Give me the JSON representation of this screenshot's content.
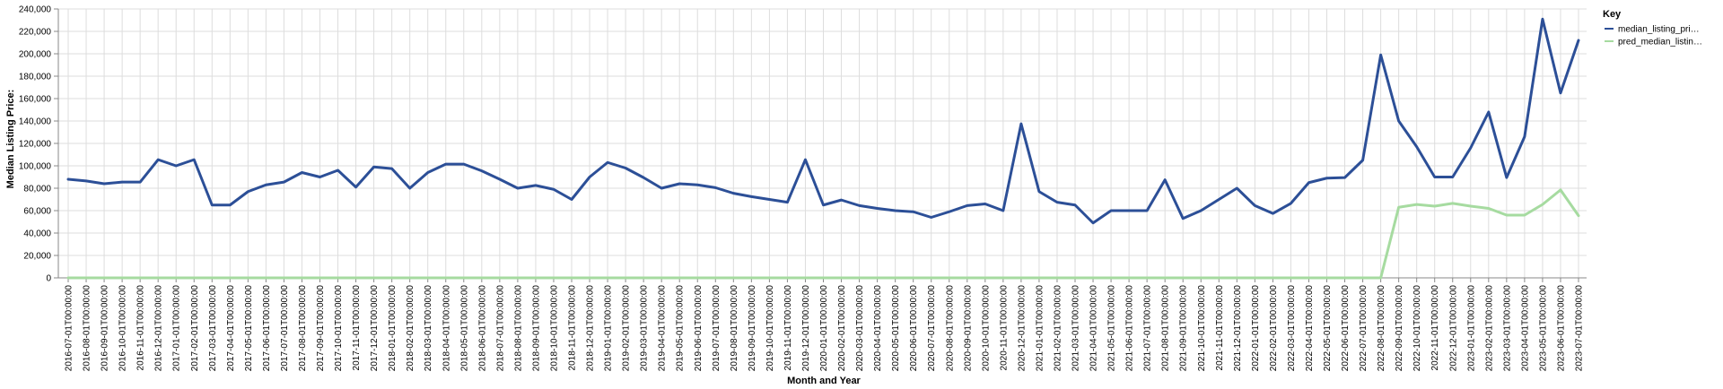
{
  "chart_data": {
    "type": "line",
    "xlabel": "Month and Year",
    "ylabel": "Median Listing Price:",
    "ylim": [
      0,
      240000
    ],
    "yticks": [
      "0",
      "20,000",
      "40,000",
      "60,000",
      "80,000",
      "100,000",
      "120,000",
      "140,000",
      "160,000",
      "180,000",
      "200,000",
      "220,000",
      "240,000"
    ],
    "grid": true,
    "legend": {
      "title": "Key",
      "position": "right",
      "entries": [
        "median_listing_pri…",
        "pred_median_listin…"
      ]
    },
    "categories": [
      "2016-07-01T00:00:00",
      "2016-08-01T00:00:00",
      "2016-09-01T00:00:00",
      "2016-10-01T00:00:00",
      "2016-11-01T00:00:00",
      "2016-12-01T00:00:00",
      "2017-01-01T00:00:00",
      "2017-02-01T00:00:00",
      "2017-03-01T00:00:00",
      "2017-04-01T00:00:00",
      "2017-05-01T00:00:00",
      "2017-06-01T00:00:00",
      "2017-07-01T00:00:00",
      "2017-08-01T00:00:00",
      "2017-09-01T00:00:00",
      "2017-10-01T00:00:00",
      "2017-11-01T00:00:00",
      "2017-12-01T00:00:00",
      "2018-01-01T00:00:00",
      "2018-02-01T00:00:00",
      "2018-03-01T00:00:00",
      "2018-04-01T00:00:00",
      "2018-05-01T00:00:00",
      "2018-06-01T00:00:00",
      "2018-07-01T00:00:00",
      "2018-08-01T00:00:00",
      "2018-09-01T00:00:00",
      "2018-10-01T00:00:00",
      "2018-11-01T00:00:00",
      "2018-12-01T00:00:00",
      "2019-01-01T00:00:00",
      "2019-02-01T00:00:00",
      "2019-03-01T00:00:00",
      "2019-04-01T00:00:00",
      "2019-05-01T00:00:00",
      "2019-06-01T00:00:00",
      "2019-07-01T00:00:00",
      "2019-08-01T00:00:00",
      "2019-09-01T00:00:00",
      "2019-10-01T00:00:00",
      "2019-11-01T00:00:00",
      "2019-12-01T00:00:00",
      "2020-01-01T00:00:00",
      "2020-02-01T00:00:00",
      "2020-03-01T00:00:00",
      "2020-04-01T00:00:00",
      "2020-05-01T00:00:00",
      "2020-06-01T00:00:00",
      "2020-07-01T00:00:00",
      "2020-08-01T00:00:00",
      "2020-09-01T00:00:00",
      "2020-10-01T00:00:00",
      "2020-11-01T00:00:00",
      "2020-12-01T00:00:00",
      "2021-01-01T00:00:00",
      "2021-02-01T00:00:00",
      "2021-03-01T00:00:00",
      "2021-04-01T00:00:00",
      "2021-05-01T00:00:00",
      "2021-06-01T00:00:00",
      "2021-07-01T00:00:00",
      "2021-08-01T00:00:00",
      "2021-09-01T00:00:00",
      "2021-10-01T00:00:00",
      "2021-11-01T00:00:00",
      "2021-12-01T00:00:00",
      "2022-01-01T00:00:00",
      "2022-02-01T00:00:00",
      "2022-03-01T00:00:00",
      "2022-04-01T00:00:00",
      "2022-05-01T00:00:00",
      "2022-06-01T00:00:00",
      "2022-07-01T00:00:00",
      "2022-08-01T00:00:00",
      "2022-09-01T00:00:00",
      "2022-10-01T00:00:00",
      "2022-11-01T00:00:00",
      "2022-12-01T00:00:00",
      "2023-01-01T00:00:00",
      "2023-02-01T00:00:00",
      "2023-03-01T00:00:00",
      "2023-04-01T00:00:00",
      "2023-05-01T00:00:00",
      "2023-06-01T00:00:00",
      "2023-07-01T00:00:00"
    ],
    "series": [
      {
        "name": "median_listing_pri…",
        "color": "#2c4f97",
        "values": [
          88000,
          86500,
          84000,
          85500,
          85500,
          105500,
          100000,
          105500,
          65000,
          65000,
          77000,
          83000,
          85500,
          94000,
          90000,
          96000,
          81000,
          99000,
          97500,
          80000,
          94000,
          101500,
          101500,
          95500,
          88000,
          80000,
          82500,
          79000,
          70000,
          90000,
          103000,
          98000,
          89500,
          80000,
          84000,
          83000,
          80500,
          75500,
          72500,
          70000,
          67500,
          105500,
          65000,
          69500,
          64500,
          62000,
          60000,
          59000,
          54000,
          59000,
          64500,
          66000,
          60000,
          137500,
          77000,
          67500,
          65000,
          49000,
          60000,
          60000,
          60000,
          87500,
          53000,
          60000,
          70000,
          80000,
          64500,
          57500,
          66500,
          85000,
          89000,
          89500,
          105000,
          199000,
          140000,
          117000,
          90000,
          90000,
          116000,
          148000,
          89500,
          126000,
          231000,
          165000,
          212000
        ]
      },
      {
        "name": "pred_median_listin…",
        "color": "#a6dba0",
        "values": [
          0,
          0,
          0,
          0,
          0,
          0,
          0,
          0,
          0,
          0,
          0,
          0,
          0,
          0,
          0,
          0,
          0,
          0,
          0,
          0,
          0,
          0,
          0,
          0,
          0,
          0,
          0,
          0,
          0,
          0,
          0,
          0,
          0,
          0,
          0,
          0,
          0,
          0,
          0,
          0,
          0,
          0,
          0,
          0,
          0,
          0,
          0,
          0,
          0,
          0,
          0,
          0,
          0,
          0,
          0,
          0,
          0,
          0,
          0,
          0,
          0,
          0,
          0,
          0,
          0,
          0,
          0,
          0,
          0,
          0,
          0,
          0,
          0,
          0,
          63000,
          65500,
          64000,
          66500,
          64000,
          62000,
          56000,
          56000,
          65500,
          78500,
          55500
        ]
      }
    ]
  }
}
